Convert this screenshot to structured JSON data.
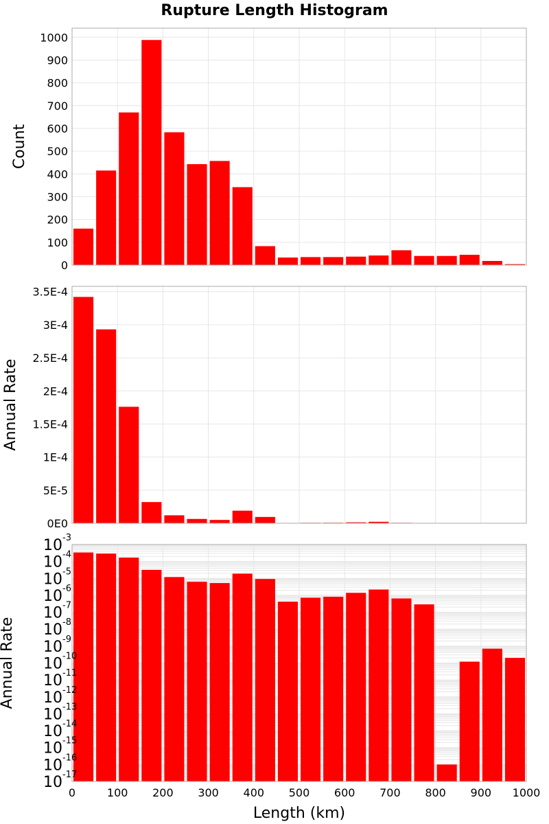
{
  "title": "Rupture Length Histogram",
  "colors": {
    "bar": "#ff0000",
    "grid": "#e6e6e6",
    "frame": "#aaaaaa",
    "background": "#ffffff"
  },
  "chart_data": [
    {
      "type": "bar",
      "bin_width": 50,
      "x": [
        25,
        75,
        125,
        175,
        225,
        275,
        325,
        375,
        425,
        475,
        525,
        575,
        625,
        675,
        725,
        775,
        825,
        875,
        925,
        975
      ],
      "values": [
        160,
        415,
        670,
        988,
        583,
        443,
        457,
        342,
        83,
        33,
        35,
        35,
        37,
        42,
        65,
        40,
        40,
        45,
        18,
        4
      ],
      "xlim": [
        0,
        1000
      ],
      "ylim": [
        0,
        1040
      ],
      "ylabel": "Count",
      "yticks": [
        0,
        100,
        200,
        300,
        400,
        500,
        600,
        700,
        800,
        900,
        1000
      ],
      "ytick_labels": [
        "0",
        "100",
        "200",
        "300",
        "400",
        "500",
        "600",
        "700",
        "800",
        "900",
        "1000"
      ],
      "grid": true
    },
    {
      "type": "bar",
      "bin_width": 50,
      "x": [
        25,
        75,
        125,
        175,
        225,
        275,
        325,
        375,
        425,
        475,
        525,
        575,
        625,
        675,
        725,
        775,
        825,
        875,
        925,
        975
      ],
      "values": [
        0.000342,
        0.000293,
        0.000176,
        3.2e-05,
        1.2e-05,
        6.5e-06,
        5e-06,
        1.9e-05,
        9.5e-06,
        5e-07,
        7e-07,
        8e-07,
        1.4e-06,
        2.2e-06,
        7e-07,
        3e-07,
        0,
        0,
        0,
        0
      ],
      "xlim": [
        0,
        1000
      ],
      "ylim": [
        0,
        0.000358
      ],
      "ylabel": "Annual Rate",
      "yticks": [
        0,
        5e-05,
        0.0001,
        0.00015,
        0.0002,
        0.00025,
        0.0003,
        0.00035
      ],
      "ytick_labels": [
        "0E0",
        "5E-5",
        "1E-4",
        "1.5E-4",
        "2E-4",
        "2.5E-4",
        "3E-4",
        "3.5E-4"
      ],
      "grid": true
    },
    {
      "type": "bar",
      "scale": "log",
      "bin_width": 50,
      "x": [
        25,
        75,
        125,
        175,
        225,
        275,
        325,
        375,
        425,
        475,
        525,
        575,
        625,
        675,
        725,
        775,
        825,
        875,
        925,
        975
      ],
      "values": [
        0.00034,
        0.00029,
        0.00017,
        3.2e-05,
        1.2e-05,
        6.3e-06,
        5.3e-06,
        1.9e-05,
        9.2e-06,
        4.2e-07,
        7.2e-07,
        8.2e-07,
        1.4e-06,
        2.2e-06,
        6.5e-07,
        2.9e-07,
        1e-16,
        1.2e-10,
        7e-10,
        2e-10
      ],
      "xlim": [
        0,
        1000
      ],
      "ylim": [
        1e-17,
        0.001
      ],
      "xlabel": "Length (km)",
      "ylabel": "Annual Rate",
      "xticks": [
        0,
        100,
        200,
        300,
        400,
        500,
        600,
        700,
        800,
        900,
        1000
      ],
      "xtick_labels": [
        "0",
        "100",
        "200",
        "300",
        "400",
        "500",
        "600",
        "700",
        "800",
        "900",
        "1000"
      ],
      "ytick_exponents": [
        -3,
        -4,
        -5,
        -6,
        -7,
        -8,
        -9,
        -10,
        -11,
        -12,
        -13,
        -14,
        -15,
        -16,
        -17
      ],
      "ytick_base": "10",
      "grid": true
    }
  ]
}
